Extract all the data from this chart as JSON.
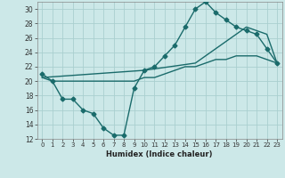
{
  "xlabel": "Humidex (Indice chaleur)",
  "bg_color": "#cce8e8",
  "grid_color": "#aacfcf",
  "line_color": "#1a6b6b",
  "xlim": [
    -0.5,
    23.5
  ],
  "ylim": [
    12,
    31
  ],
  "xticks": [
    0,
    1,
    2,
    3,
    4,
    5,
    6,
    7,
    8,
    9,
    10,
    11,
    12,
    13,
    14,
    15,
    16,
    17,
    18,
    19,
    20,
    21,
    22,
    23
  ],
  "yticks": [
    12,
    14,
    16,
    18,
    20,
    22,
    24,
    26,
    28,
    30
  ],
  "curve1_x": [
    0,
    1,
    2,
    3,
    4,
    5,
    6,
    7,
    8,
    9,
    10,
    11,
    12,
    13,
    14,
    15,
    16,
    17,
    18,
    19,
    20,
    21,
    22,
    23
  ],
  "curve1_y": [
    21,
    20,
    17.5,
    17.5,
    16,
    15.5,
    13.5,
    12.5,
    12.5,
    19,
    21.5,
    22,
    23.5,
    25,
    27.5,
    30,
    31,
    29.5,
    28.5,
    27.5,
    27,
    26.5,
    24.5,
    22.5
  ],
  "curve2_x": [
    0,
    1,
    2,
    3,
    4,
    5,
    6,
    7,
    8,
    9,
    10,
    11,
    12,
    13,
    14,
    15,
    16,
    17,
    18,
    19,
    20,
    21,
    22,
    23
  ],
  "curve2_y": [
    20.5,
    20,
    20,
    20,
    20,
    20,
    20,
    20,
    20,
    20,
    20.5,
    20.5,
    21,
    21.5,
    22,
    22,
    22.5,
    23,
    23,
    23.5,
    23.5,
    23.5,
    23.0,
    22.5
  ],
  "curve3_x": [
    0,
    10,
    15,
    20,
    22,
    23
  ],
  "curve3_y": [
    20.5,
    21.5,
    22.5,
    27.5,
    26.5,
    22.5
  ]
}
